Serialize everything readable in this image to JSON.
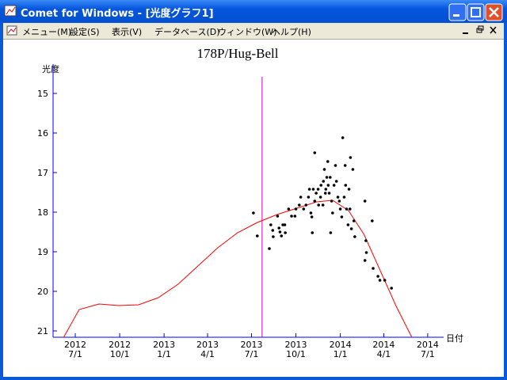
{
  "window": {
    "title": "Comet for Windows - [光度グラフ1]"
  },
  "menu": [
    "メニュー(M)",
    "設定(S)",
    "表示(V)",
    "データベース(D)",
    "ウィンドウ(W)",
    "ヘルプ(H)"
  ],
  "chart_data": {
    "type": "scatter",
    "title": "178P/Hug-Bell",
    "y_label": "光度",
    "x_label": "日付",
    "xlim": [
      "2012-05-16",
      "2014-08-03"
    ],
    "ylim": [
      14.26,
      21.16
    ],
    "y_inverted": true,
    "axis_color": "#0000ff",
    "yticks": [
      15,
      16,
      17,
      18,
      19,
      20,
      21
    ],
    "xticks": [
      {
        "value": "2012-07-01",
        "label": [
          "2012",
          "7/1"
        ]
      },
      {
        "value": "2012-10-01",
        "label": [
          "2012",
          "10/1"
        ]
      },
      {
        "value": "2013-01-01",
        "label": [
          "2013",
          "1/1"
        ]
      },
      {
        "value": "2013-04-01",
        "label": [
          "2013",
          "4/1"
        ]
      },
      {
        "value": "2013-07-01",
        "label": [
          "2013",
          "7/1"
        ]
      },
      {
        "value": "2013-10-01",
        "label": [
          "2013",
          "10/1"
        ]
      },
      {
        "value": "2014-01-01",
        "label": [
          "2014",
          "1/1"
        ]
      },
      {
        "value": "2014-04-01",
        "label": [
          "2014",
          "4/1"
        ]
      },
      {
        "value": "2014-07-01",
        "label": [
          "2014",
          "7/1"
        ]
      }
    ],
    "marker_line": {
      "x": "2013-07-23",
      "color": "#cc00cc"
    },
    "curve": {
      "color": "#ff0000",
      "x": [
        "2012-06-07",
        "2012-07-09",
        "2012-08-19",
        "2012-09-29",
        "2012-11-09",
        "2012-12-20",
        "2013-01-30",
        "2013-03-12",
        "2013-04-22",
        "2013-06-02",
        "2013-07-13",
        "2013-08-23",
        "2013-10-03",
        "2013-11-13",
        "2013-12-16",
        "2014-01-18",
        "2014-02-19",
        "2014-03-24",
        "2014-04-26",
        "2014-05-29"
      ],
      "values": [
        21.16,
        20.46,
        20.32,
        20.36,
        20.34,
        20.16,
        19.82,
        19.36,
        18.9,
        18.52,
        18.26,
        18.06,
        17.9,
        17.74,
        17.7,
        17.96,
        18.56,
        19.46,
        20.36,
        21.16
      ]
    },
    "points": {
      "color": "#000000",
      "x": [
        "2013-07-05",
        "2013-07-13",
        "2013-08-07",
        "2013-08-10",
        "2013-08-14",
        "2013-08-15",
        "2013-08-24",
        "2013-08-27",
        "2013-08-29",
        "2013-09-01",
        "2013-09-04",
        "2013-09-08",
        "2013-09-09",
        "2013-09-16",
        "2013-09-22",
        "2013-09-29",
        "2013-10-01",
        "2013-10-08",
        "2013-10-11",
        "2013-10-17",
        "2013-10-22",
        "2013-10-27",
        "2013-10-29",
        "2013-11-01",
        "2013-11-03",
        "2013-11-04",
        "2013-11-06",
        "2013-11-09",
        "2013-11-09",
        "2013-11-12",
        "2013-11-16",
        "2013-11-17",
        "2013-11-21",
        "2013-11-22",
        "2013-11-26",
        "2013-11-27",
        "2013-11-29",
        "2013-12-01",
        "2013-12-02",
        "2013-12-04",
        "2013-12-06",
        "2013-12-07",
        "2013-12-09",
        "2013-12-11",
        "2013-12-12",
        "2013-12-14",
        "2013-12-16",
        "2013-12-19",
        "2013-12-22",
        "2013-12-24",
        "2013-12-27",
        "2013-12-30",
        "2014-01-01",
        "2014-01-04",
        "2014-01-06",
        "2014-01-09",
        "2014-01-11",
        "2014-01-12",
        "2014-01-14",
        "2014-01-17",
        "2014-01-19",
        "2014-01-21",
        "2014-01-22",
        "2014-01-24",
        "2014-01-27",
        "2014-01-29",
        "2014-01-31",
        "2014-02-21",
        "2014-02-23",
        "2014-02-24",
        "2014-03-08",
        "2014-02-21",
        "2014-03-10",
        "2014-03-20",
        "2014-03-24",
        "2014-04-03",
        "2014-04-17"
      ],
      "values": [
        18.02,
        18.6,
        18.92,
        18.32,
        18.46,
        18.62,
        18.1,
        18.4,
        18.5,
        18.6,
        18.32,
        18.32,
        18.52,
        17.92,
        18.1,
        18.1,
        17.92,
        17.82,
        17.62,
        17.92,
        17.82,
        17.62,
        17.42,
        18.02,
        18.12,
        18.52,
        17.42,
        16.5,
        17.72,
        17.52,
        17.42,
        17.82,
        17.62,
        17.32,
        17.82,
        17.22,
        16.92,
        17.52,
        17.42,
        17.12,
        16.72,
        17.32,
        17.52,
        17.12,
        18.52,
        17.72,
        18.02,
        17.32,
        16.82,
        17.22,
        17.62,
        17.72,
        17.92,
        18.12,
        16.12,
        17.62,
        16.82,
        17.32,
        17.92,
        18.32,
        17.42,
        17.92,
        16.62,
        18.42,
        16.92,
        18.22,
        18.62,
        17.72,
        18.72,
        19.02,
        18.22,
        19.22,
        19.42,
        19.62,
        19.72,
        19.72,
        19.92
      ]
    }
  }
}
